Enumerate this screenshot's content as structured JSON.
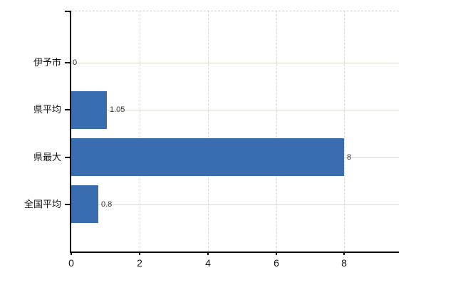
{
  "chart_data": {
    "type": "bar",
    "orientation": "horizontal",
    "title": "",
    "categories": [
      "伊予市",
      "県平均",
      "県最大",
      "全国平均"
    ],
    "values": [
      0,
      1.05,
      8,
      0.8
    ],
    "value_labels": [
      "0",
      "1.05",
      "8",
      "0.8"
    ],
    "x_tick_labels": [
      "0",
      "2",
      "4",
      "6",
      "8"
    ],
    "x_tick_values": [
      0,
      2,
      4,
      6,
      8
    ],
    "xlim": [
      0,
      9.6
    ],
    "grid": true,
    "legend_position": "none"
  },
  "colors": {
    "bar": "#3a6cb0",
    "axis": "#000000",
    "h_gridline": "#d6dbd0",
    "v_gridline": "#d9d9de",
    "top_border": "#cccccc",
    "value_label": "#333333",
    "category_label": "#111111",
    "x_tick_label": "#111111",
    "background": "#ffffff"
  }
}
